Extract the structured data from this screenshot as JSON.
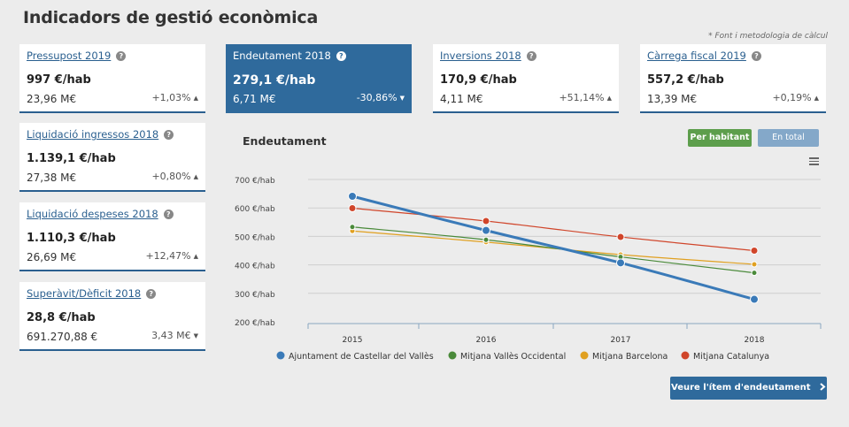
{
  "page_title": "Indicadors de gestió econòmica",
  "source_note": "* Font i metodologia de càlcul",
  "help_glyph": "?",
  "cards": [
    {
      "title": "Pressupost 2019",
      "value": "997 €/hab",
      "sub": "23,96 M€",
      "change": "+1,03%",
      "dir": "▲"
    },
    {
      "title": "Endeutament 2018",
      "value": "279,1 €/hab",
      "sub": "6,71 M€",
      "change": "-30,86%",
      "dir": "▼",
      "active": true
    },
    {
      "title": "Inversions 2018",
      "value": "170,9 €/hab",
      "sub": "4,11 M€",
      "change": "+51,14%",
      "dir": "▲"
    },
    {
      "title": "Càrrega fiscal 2019",
      "value": "557,2 €/hab",
      "sub": "13,39 M€",
      "change": "+0,19%",
      "dir": "▲"
    },
    {
      "title": "Liquidació ingressos 2018",
      "value": "1.139,1 €/hab",
      "sub": "27,38 M€",
      "change": "+0,80%",
      "dir": "▲"
    },
    {
      "title": "Liquidació despeses 2018",
      "value": "1.110,3 €/hab",
      "sub": "26,69 M€",
      "change": "+12,47%",
      "dir": "▲"
    },
    {
      "title": "Superàvit/Dèficit 2018",
      "value": "28,8 €/hab",
      "sub": "691.270,88 €",
      "change": "3,43 M€",
      "dir": "▼"
    }
  ],
  "chart_panel": {
    "title": "Endeutament",
    "btn_per_habitant": "Per habitant",
    "btn_en_total": "En total",
    "cta_label": "Veure l'ítem d'endeutament",
    "cta_icon": "chevron-right-icon"
  },
  "chart_data": {
    "type": "line",
    "title": "Endeutament",
    "x": [
      "2015",
      "2016",
      "2017",
      "2018"
    ],
    "ylim": [
      200,
      700
    ],
    "yticks": [
      200,
      300,
      400,
      500,
      600,
      700
    ],
    "ytick_suffix": " €/hab",
    "grid": true,
    "legend": "bottom",
    "series": [
      {
        "name": "Ajuntament de Castellar del Vallès",
        "color": "#3a7ab8",
        "values": [
          641,
          521,
          407,
          279
        ]
      },
      {
        "name": "Mitjana Vallès Occidental",
        "color": "#4a8a3a",
        "values": [
          533,
          488,
          428,
          372
        ]
      },
      {
        "name": "Mitjana Barcelona",
        "color": "#e0a020",
        "values": [
          519,
          480,
          436,
          402
        ]
      },
      {
        "name": "Mitjana Catalunya",
        "color": "#d0452a",
        "values": [
          599,
          554,
          498,
          450
        ]
      }
    ]
  }
}
